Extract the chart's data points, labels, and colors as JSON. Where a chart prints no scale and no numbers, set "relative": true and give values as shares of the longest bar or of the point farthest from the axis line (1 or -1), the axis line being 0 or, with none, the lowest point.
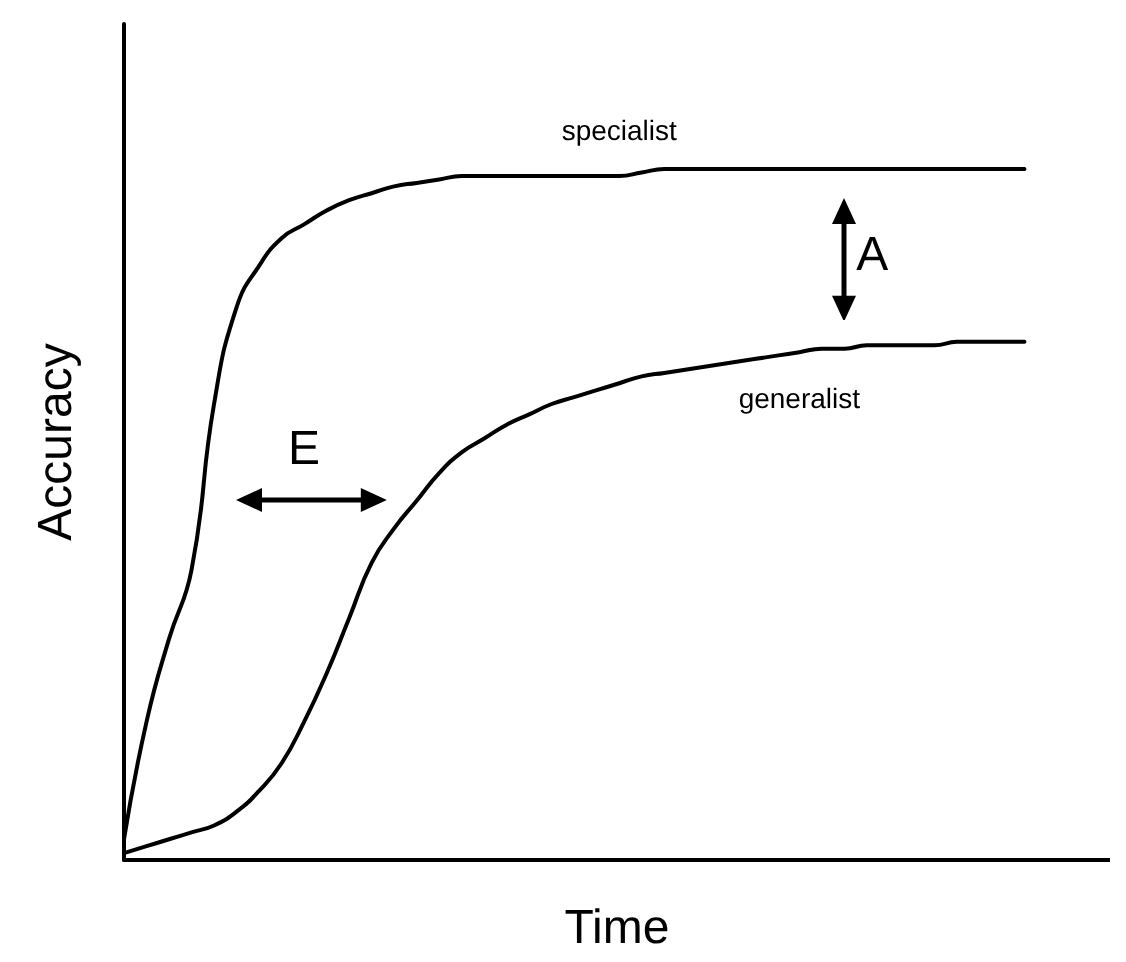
{
  "chart_data": {
    "type": "line",
    "relative": true,
    "xlabel": "Time",
    "ylabel": "Accuracy",
    "marker": "none",
    "categories": [
      null,
      null,
      null,
      null,
      null,
      null,
      null,
      null,
      null,
      null,
      null,
      null,
      null,
      null,
      null,
      null,
      null,
      null,
      null,
      null,
      null,
      null,
      null,
      null,
      null,
      null,
      null,
      null,
      null,
      null,
      null,
      null,
      null,
      null,
      null,
      null,
      null,
      null,
      null,
      null,
      null
    ],
    "series": [
      {
        "name": "specialist",
        "color": "#000000",
        "values": [
          0.03,
          0.2,
          0.32,
          0.42,
          0.66,
          0.8,
          0.86,
          0.9,
          0.92,
          0.94,
          0.955,
          0.965,
          0.975,
          0.98,
          0.985,
          0.99,
          0.99,
          0.99,
          0.99,
          0.99,
          0.99,
          0.99,
          0.99,
          0.995,
          1,
          1,
          1,
          1,
          1,
          1,
          1,
          1,
          1,
          1,
          1,
          1,
          1,
          1,
          1,
          1,
          1
        ]
      },
      {
        "name": "generalist",
        "color": "#000000",
        "values": [
          0.01,
          0.02,
          0.03,
          0.04,
          0.05,
          0.07,
          0.1,
          0.14,
          0.2,
          0.27,
          0.35,
          0.43,
          0.48,
          0.52,
          0.56,
          0.59,
          0.61,
          0.63,
          0.645,
          0.66,
          0.67,
          0.68,
          0.69,
          0.7,
          0.705,
          0.71,
          0.715,
          0.72,
          0.725,
          0.73,
          0.735,
          0.74,
          0.74,
          0.745,
          0.745,
          0.745,
          0.745,
          0.75,
          0.75,
          0.75,
          0.75
        ]
      }
    ],
    "annotations": [
      "A",
      "E"
    ]
  }
}
